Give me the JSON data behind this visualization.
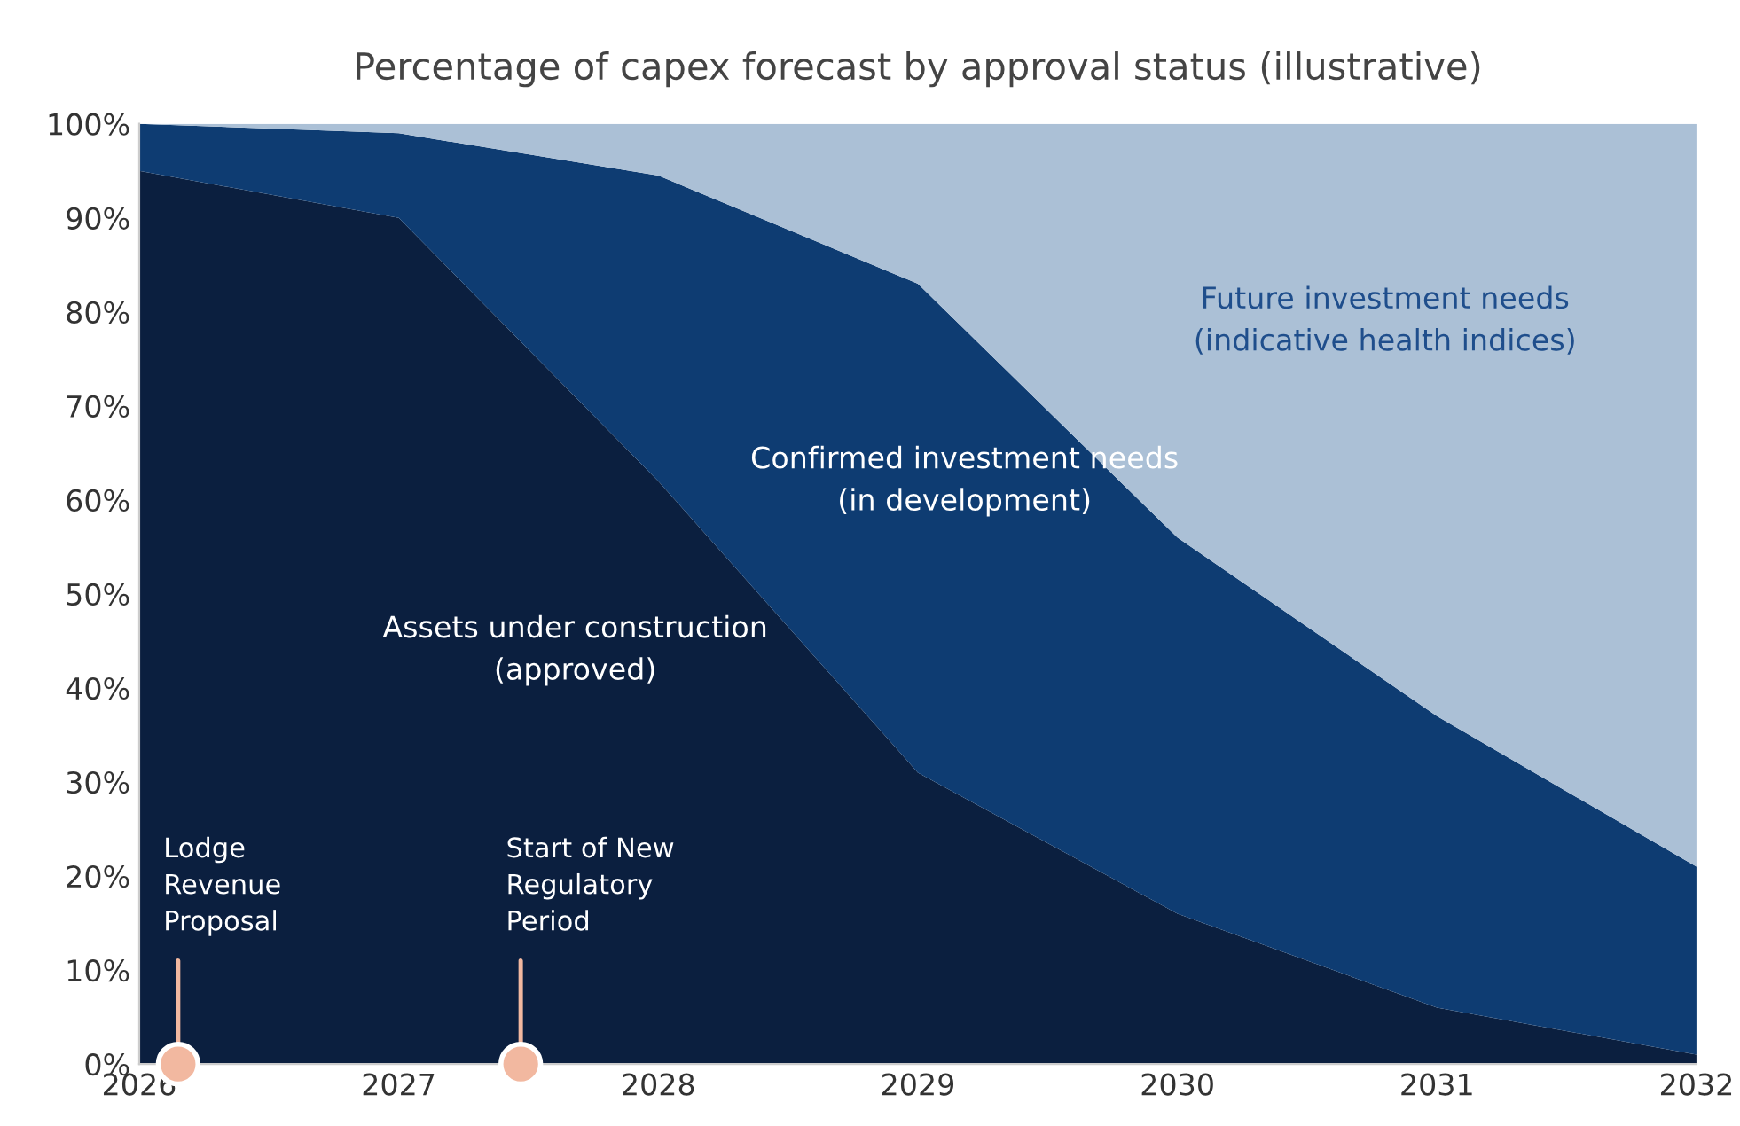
{
  "chart_data": {
    "type": "area",
    "stacked": true,
    "title": "Percentage of capex forecast by approval status (illustrative)",
    "x": [
      2026,
      2027,
      2028,
      2029,
      2030,
      2031,
      2032
    ],
    "series": [
      {
        "name": "Assets under construction\n(approved)",
        "color": "#0b1f3f",
        "values": [
          95,
          90,
          62,
          31,
          16,
          6,
          1
        ]
      },
      {
        "name": "Confirmed investment needs\n(in development)",
        "color": "#0e3c72",
        "values": [
          5,
          9,
          32.5,
          52,
          40,
          31,
          20
        ]
      },
      {
        "name": "Future investment needs\n(indicative health indices)",
        "color": "#abc0d6",
        "values": [
          0,
          1,
          5.5,
          17,
          44,
          63,
          79
        ]
      },
      {
        "type": "scatter",
        "color": "#f2b8a0",
        "x": [
          2026.15,
          2027.47
        ],
        "values": [
          0,
          0
        ]
      }
    ],
    "annotations": [
      {
        "text": "Lodge\nRevenue\nProposal",
        "x": 2026.15,
        "y": 0
      },
      {
        "text": "Start of New\nRegulatory\nPeriod",
        "x": 2027.47,
        "y": 0
      }
    ],
    "xlim": [
      2026,
      2032
    ],
    "xticks": [
      2026,
      2027,
      2028,
      2029,
      2030,
      2031,
      2032
    ],
    "ylim": [
      0,
      100
    ],
    "yticks": [
      {
        "value": 0,
        "label": "0%"
      },
      {
        "value": 10,
        "label": "10%"
      },
      {
        "value": 20,
        "label": "20%"
      },
      {
        "value": 30,
        "label": "30%"
      },
      {
        "value": 40,
        "label": "40%"
      },
      {
        "value": 50,
        "label": "50%"
      },
      {
        "value": 60,
        "label": "60%"
      },
      {
        "value": 70,
        "label": "70%"
      },
      {
        "value": 80,
        "label": "80%"
      },
      {
        "value": 90,
        "label": "90%"
      },
      {
        "value": 100,
        "label": "100%"
      }
    ],
    "grid": false,
    "legend": false
  }
}
